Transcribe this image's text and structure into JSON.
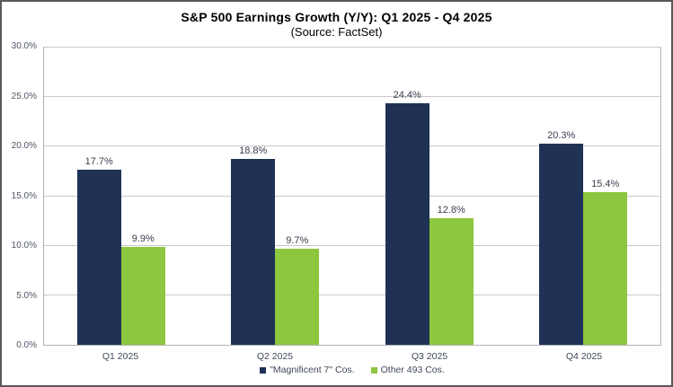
{
  "title": "S&P 500 Earnings Growth (Y/Y): Q1 2025 - Q4 2025",
  "subtitle": "(Source: FactSet)",
  "chart_data": {
    "type": "bar",
    "categories": [
      "Q1 2025",
      "Q2 2025",
      "Q3 2025",
      "Q4 2025"
    ],
    "series": [
      {
        "name": "\"Magnificent 7\" Cos.",
        "values": [
          17.7,
          18.8,
          24.4,
          20.3
        ],
        "color": "#1f3255"
      },
      {
        "name": "Other 493 Cos.",
        "values": [
          9.9,
          9.7,
          12.8,
          15.4
        ],
        "color": "#8dc63f"
      }
    ],
    "data_labels": [
      [
        "17.7%",
        "18.8%",
        "24.4%",
        "20.3%"
      ],
      [
        "9.9%",
        "9.7%",
        "12.8%",
        "15.4%"
      ]
    ],
    "y_ticks": [
      "0.0%",
      "5.0%",
      "10.0%",
      "15.0%",
      "20.0%",
      "25.0%",
      "30.0%"
    ],
    "ylim": [
      0,
      30
    ],
    "grid": true,
    "legend_position": "bottom"
  }
}
